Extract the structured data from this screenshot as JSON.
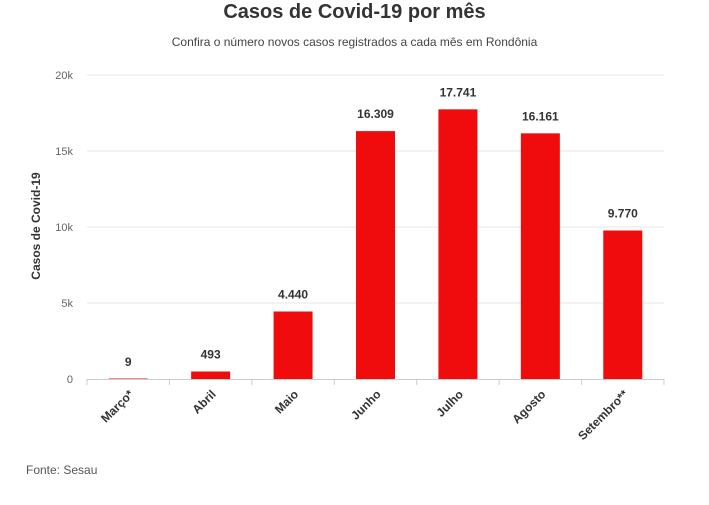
{
  "title": "Casos de Covid-19 por mês",
  "subtitle": "Confira o número novos casos registrados a cada mês em Rondônia",
  "source": "Fonte: Sesau",
  "colors": {
    "bar": "#f00c0c",
    "grid": "#e6e6e6",
    "axis": "#cccccc"
  },
  "chart_data": {
    "type": "bar",
    "title": "Casos de Covid-19 por mês",
    "subtitle": "Confira o número novos casos registrados a cada mês em Rondônia",
    "xlabel": "",
    "ylabel": "Casos de Covid-19",
    "categories": [
      "Março*",
      "Abril",
      "Maio",
      "Junho",
      "Julho",
      "Agosto",
      "Setembro**"
    ],
    "values": [
      9,
      493,
      4440,
      16309,
      17741,
      16161,
      9770
    ],
    "value_labels": [
      "9",
      "493",
      "4.440",
      "16.309",
      "17.741",
      "16.161",
      "9.770"
    ],
    "ylim": [
      0,
      20000
    ],
    "yticks": [
      0,
      5000,
      10000,
      15000,
      20000
    ],
    "ytick_labels": [
      "0",
      "5k",
      "10k",
      "15k",
      "20k"
    ],
    "grid": true,
    "legend": "none"
  }
}
